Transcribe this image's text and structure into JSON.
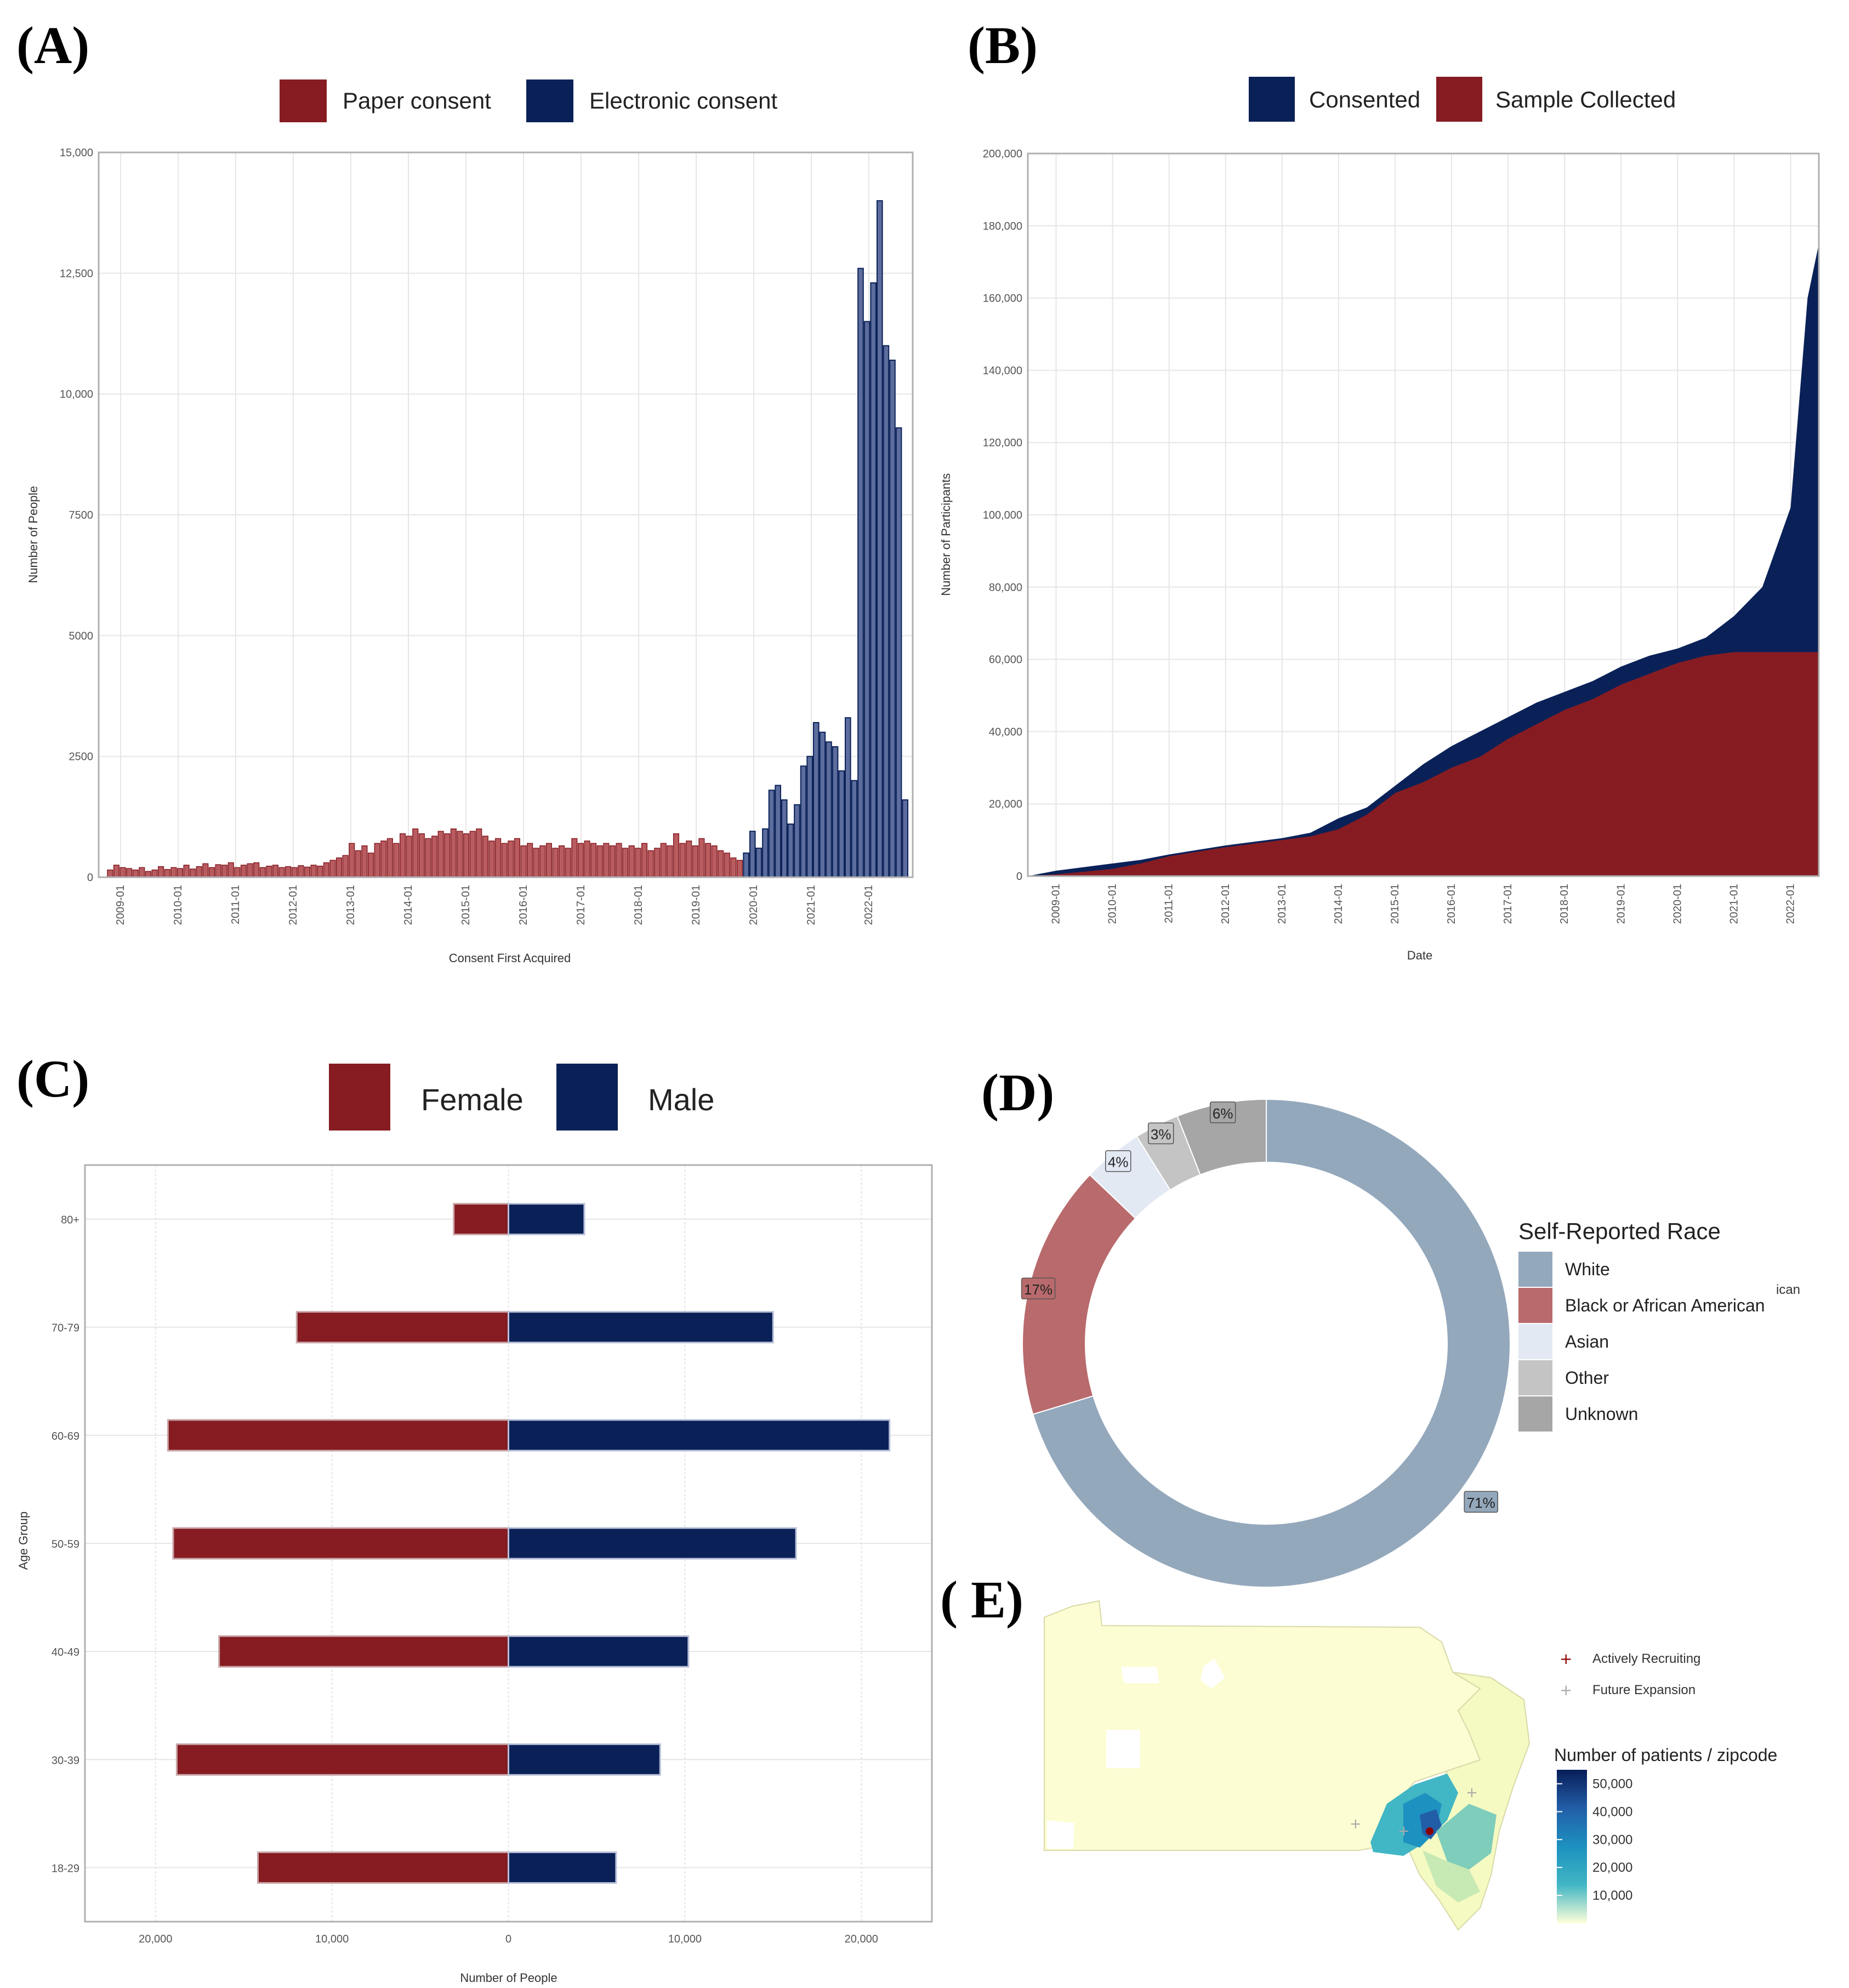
{
  "panels": {
    "a": "(A)",
    "b": "(B)",
    "c": "(C)",
    "d": "(D)",
    "e": "( E)"
  },
  "colors": {
    "red": "#861c22",
    "red_light": "#b85c60",
    "navy": "#0a2158",
    "navy_light": "#5b6c9d",
    "white_race": "#94a8bc",
    "black_race": "#b96a6c",
    "asian": "#e3e9f3",
    "other": "#c4c4c4",
    "unknown": "#a6a6a6"
  },
  "chart_data": [
    {
      "id": "A",
      "type": "bar",
      "title": "",
      "xlabel": "Consent First Acquired",
      "ylabel": "Number of People",
      "ylim": [
        0,
        15000
      ],
      "yticks": [
        0,
        2500,
        5000,
        7500,
        10000,
        12500,
        15000
      ],
      "ytick_labels": [
        "0",
        "2500",
        "5000",
        "7500",
        "10,000",
        "12,500",
        "15,000"
      ],
      "xtick_labels": [
        "2009-01",
        "2010-01",
        "2011-01",
        "2012-01",
        "2013-01",
        "2014-01",
        "2015-01",
        "2016-01",
        "2017-01",
        "2018-01",
        "2019-01",
        "2020-01",
        "2021-01",
        "2022-01"
      ],
      "legend": [
        "Paper consent",
        "Electronic consent"
      ],
      "series": [
        {
          "name": "Paper consent",
          "values": [
            150,
            250,
            200,
            180,
            150,
            200,
            120,
            150,
            220,
            160,
            200,
            180,
            250,
            170,
            220,
            280,
            200,
            260,
            250,
            300,
            200,
            250,
            280,
            300,
            200,
            230,
            250,
            200,
            220,
            200,
            240,
            210,
            250,
            230,
            300,
            350,
            400,
            450,
            700,
            550,
            650,
            500,
            700,
            750,
            800,
            700,
            900,
            850,
            1000,
            900,
            800,
            850,
            950,
            900,
            1000,
            950,
            900,
            950,
            1000,
            850,
            750,
            800,
            700,
            750,
            800,
            650,
            700,
            600,
            650,
            700,
            600,
            650,
            600,
            800,
            700,
            750,
            700,
            650,
            700,
            650,
            700,
            600,
            650,
            600,
            700,
            550,
            600,
            700,
            650,
            900,
            700,
            750,
            650,
            800,
            700,
            650,
            550,
            500,
            400,
            350
          ]
        },
        {
          "name": "Electronic consent",
          "values": [
            500,
            950,
            600,
            1000,
            1800,
            1900,
            1600,
            1100,
            1500,
            2300,
            2500,
            3200,
            3000,
            2800,
            2700,
            2200,
            3300,
            2000,
            12600,
            11500,
            12300,
            14000,
            11000,
            10700,
            9300,
            1600
          ]
        }
      ]
    },
    {
      "id": "B",
      "type": "area",
      "xlabel": "Date",
      "ylabel": "Number of Participants",
      "ylim": [
        0,
        200000
      ],
      "yticks": [
        0,
        20000,
        40000,
        60000,
        80000,
        100000,
        120000,
        140000,
        160000,
        180000,
        200000
      ],
      "ytick_labels": [
        "0",
        "20,000",
        "40,000",
        "60,000",
        "80,000",
        "100,000",
        "120,000",
        "140,000",
        "160,000",
        "180,000",
        "200,000"
      ],
      "xtick_labels": [
        "2009-01",
        "2010-01",
        "2011-01",
        "2012-01",
        "2013-01",
        "2014-01",
        "2015-01",
        "2016-01",
        "2017-01",
        "2018-01",
        "2019-01",
        "2020-01",
        "2021-01",
        "2022-01"
      ],
      "legend": [
        "Consented",
        "Sample Collected"
      ],
      "x": [
        2008.5,
        2009,
        2010,
        2010.5,
        2011,
        2012,
        2013,
        2013.5,
        2014,
        2014.5,
        2015,
        2015.5,
        2016,
        2016.5,
        2017,
        2017.5,
        2018,
        2018.5,
        2019,
        2019.5,
        2020,
        2020.5,
        2021,
        2021.5,
        2022,
        2022.3,
        2022.5
      ],
      "series": [
        {
          "name": "Consented",
          "values": [
            0,
            1500,
            3500,
            4500,
            6000,
            8500,
            10500,
            12000,
            16000,
            19000,
            25000,
            31000,
            36000,
            40000,
            44000,
            48000,
            51000,
            54000,
            58000,
            61000,
            63000,
            66000,
            72000,
            80000,
            102000,
            160000,
            175000
          ]
        },
        {
          "name": "Sample Collected",
          "values": [
            0,
            500,
            2000,
            3500,
            5500,
            8000,
            10000,
            11000,
            13000,
            17000,
            23000,
            26000,
            30000,
            33000,
            38000,
            42000,
            46000,
            49000,
            53000,
            56000,
            59000,
            61000,
            62000,
            62000,
            62000,
            62000,
            62000
          ]
        }
      ]
    },
    {
      "id": "C",
      "type": "bar",
      "orientation": "horizontal",
      "xlabel": "Number of People",
      "ylabel": "Age Group",
      "xlim": [
        -24000,
        24000
      ],
      "xticks": [
        -20000,
        -10000,
        0,
        10000,
        20000
      ],
      "xtick_labels": [
        "20,000",
        "10,000",
        "0",
        "10,000",
        "20,000"
      ],
      "categories": [
        "18-29",
        "30-39",
        "40-49",
        "50-59",
        "60-69",
        "70-79",
        "80+"
      ],
      "legend": [
        "Female",
        "Male"
      ],
      "series": [
        {
          "name": "Female",
          "values": [
            14200,
            18800,
            16400,
            19000,
            19300,
            12000,
            3100
          ]
        },
        {
          "name": "Male",
          "values": [
            6100,
            8600,
            10200,
            16300,
            21600,
            15000,
            4300
          ]
        }
      ]
    },
    {
      "id": "D",
      "type": "pie",
      "title": "Self-Reported Race",
      "categories": [
        "White",
        "Black or African American",
        "Asian",
        "Other",
        "Unknown"
      ],
      "values": [
        71,
        17,
        4,
        3,
        6
      ],
      "labels": [
        "71%",
        "17%",
        "4%",
        "3%",
        "6%"
      ],
      "legend_clipped_text": "ican"
    },
    {
      "id": "E",
      "type": "map",
      "legend_points": [
        "Actively Recruiting",
        "Future Expansion"
      ],
      "colorbar_title": "Number of patients / zipcode",
      "colorbar_ticks": [
        "50,000",
        "40,000",
        "30,000",
        "20,000",
        "10,000"
      ],
      "colorbar_values": [
        50000,
        40000,
        30000,
        20000,
        10000
      ]
    }
  ]
}
